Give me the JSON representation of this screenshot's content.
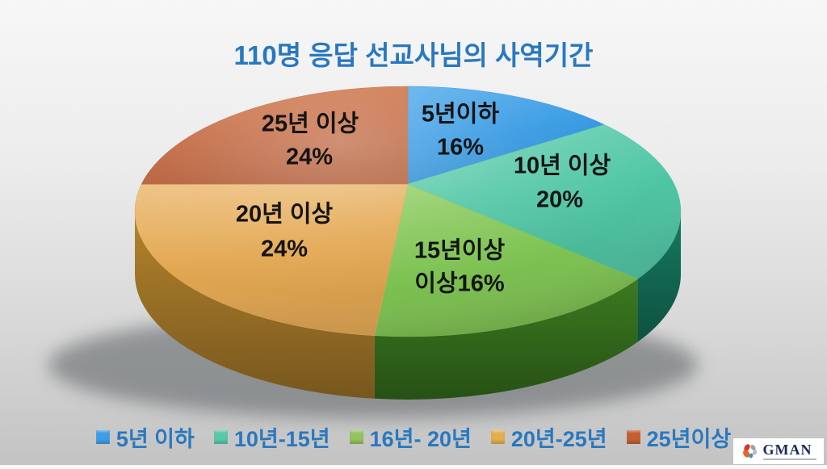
{
  "chart_data": {
    "type": "pie",
    "style": "3d-perspective",
    "title": "110명 응답 선교사님의 사역기간",
    "title_color": "#2878c0",
    "legend_position": "bottom",
    "legend_text_color": "#2878c0",
    "label_text_color": "#141414",
    "slices": [
      {
        "legend_label": "5년 이하",
        "label": "5년이하",
        "value_label": "16%",
        "value_pct": 16,
        "color": "#2e96e2",
        "color_light": "#55aceb",
        "legend_color": "#3e9de6"
      },
      {
        "legend_label": "10년-15년",
        "label": "10년 이상",
        "value_label": "20%",
        "value_pct": 20,
        "color": "#4fc6a4",
        "color_light": "#72d2b6",
        "legend_color": "#57c9a7",
        "wall_color": "#157a61"
      },
      {
        "legend_label": "16년- 20년",
        "label": "15년이상",
        "value_label": "이상16%",
        "value_pct": 16,
        "color": "#7ec352",
        "color_light": "#93cf6a",
        "legend_color": "#93c45e",
        "wall_color": "#3b7a20"
      },
      {
        "legend_label": "20년-25년",
        "label": "20년 이상",
        "value_label": "24%",
        "value_pct": 24,
        "color": "#e3a751",
        "color_light": "#edc07e",
        "legend_color": "#e2b04e",
        "wall_color": "#b5842d"
      },
      {
        "legend_label": "25년이상",
        "label": "25년 이상",
        "value_label": "24%",
        "value_pct": 24,
        "color": "#c2633a",
        "color_light": "#d07c4d",
        "legend_color": "#c55f31"
      }
    ]
  },
  "logo": {
    "text": "GMAN",
    "text_color": "#1a2b57"
  }
}
